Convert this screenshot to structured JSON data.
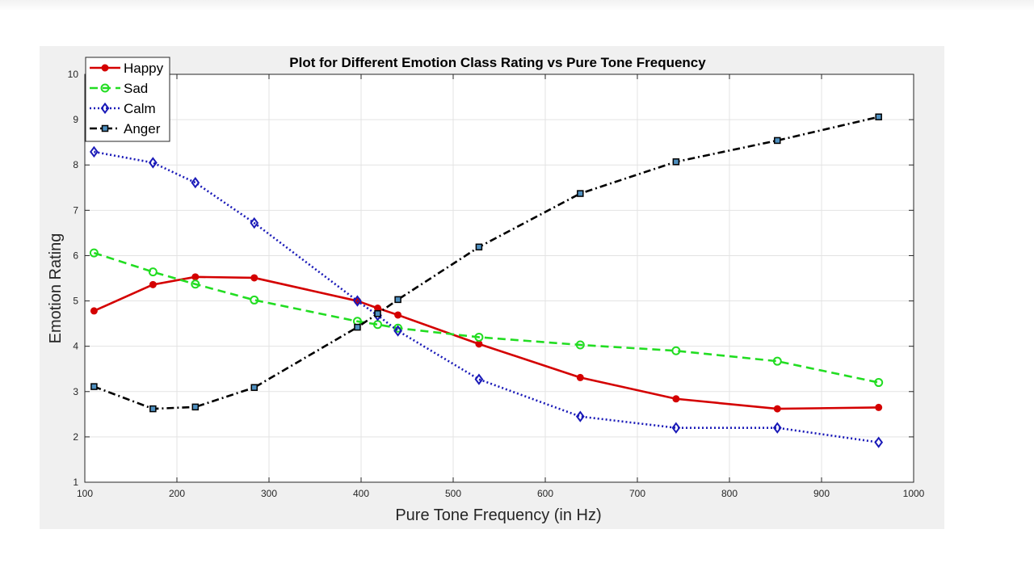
{
  "chart_data": {
    "type": "line",
    "title": "Plot for Different Emotion Class Rating vs Pure Tone Frequency",
    "xlabel": "Pure Tone Frequency (in Hz)",
    "ylabel": "Emotion Rating",
    "xlim": [
      100,
      1000
    ],
    "ylim": [
      1,
      10
    ],
    "xticks": [
      100,
      200,
      300,
      400,
      500,
      600,
      700,
      800,
      900,
      1000
    ],
    "yticks": [
      1,
      2,
      3,
      4,
      5,
      6,
      7,
      8,
      9,
      10
    ],
    "grid": true,
    "legend_position": "top-left",
    "series": [
      {
        "name": "Happy",
        "color": "#d40000",
        "line_style": "solid",
        "marker": "filled-circle",
        "x": [
          110,
          174,
          220,
          284,
          396,
          418,
          440,
          528,
          638,
          742,
          852,
          962
        ],
        "y": [
          4.78,
          5.36,
          5.53,
          5.51,
          5.0,
          4.84,
          4.69,
          4.05,
          3.31,
          2.84,
          2.62,
          2.65
        ]
      },
      {
        "name": "Sad",
        "color": "#22dd22",
        "line_style": "dashed",
        "marker": "open-circle",
        "x": [
          110,
          174,
          220,
          284,
          396,
          418,
          440,
          528,
          638,
          742,
          852,
          962
        ],
        "y": [
          6.06,
          5.64,
          5.37,
          5.02,
          4.55,
          4.48,
          4.4,
          4.2,
          4.03,
          3.9,
          3.67,
          3.2
        ]
      },
      {
        "name": "Calm",
        "color": "#1a1ab8",
        "line_style": "dotted",
        "marker": "open-diamond",
        "x": [
          110,
          174,
          220,
          284,
          396,
          418,
          440,
          528,
          638,
          742,
          852,
          962
        ],
        "y": [
          8.29,
          8.05,
          7.61,
          6.72,
          5.0,
          4.68,
          4.34,
          3.27,
          2.45,
          2.2,
          2.2,
          1.88
        ]
      },
      {
        "name": "Anger",
        "color": "#000000",
        "marker_fill": "#4f90c0",
        "line_style": "dash-dot",
        "marker": "filled-square",
        "x": [
          110,
          174,
          220,
          284,
          396,
          418,
          440,
          528,
          638,
          742,
          852,
          962
        ],
        "y": [
          3.11,
          2.62,
          2.66,
          3.09,
          4.42,
          4.72,
          5.03,
          6.19,
          7.37,
          8.07,
          8.54,
          9.06
        ]
      }
    ]
  }
}
